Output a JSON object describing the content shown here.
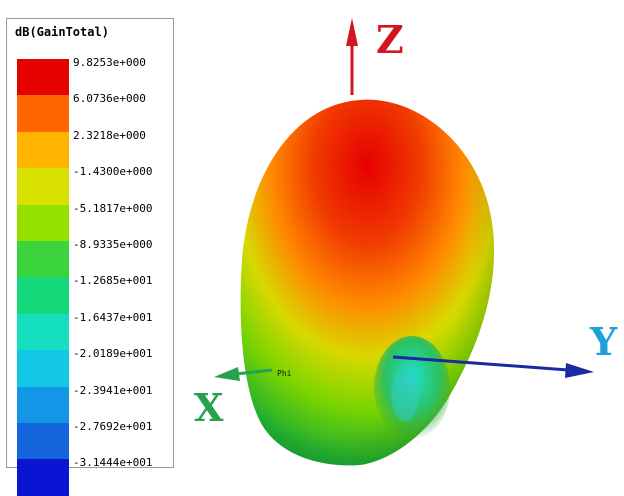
{
  "legend": {
    "title": "dB(GainTotal)",
    "ticks": [
      "9.8253e+000",
      "6.0736e+000",
      "2.3218e+000",
      "-1.4300e+000",
      "-5.1817e+000",
      "-8.9335e+000",
      "-1.2685e+001",
      "-1.6437e+001",
      "-2.0189e+001",
      "-2.3941e+001",
      "-2.7692e+001",
      "-3.1444e+001"
    ],
    "colors": [
      "#e60000",
      "#ff6600",
      "#ffb400",
      "#d8e000",
      "#96e000",
      "#3cd43c",
      "#14d87a",
      "#14e0c0",
      "#12c8e6",
      "#1496e6",
      "#1464dc",
      "#0a14d2"
    ]
  },
  "axes": {
    "z_label": "Z",
    "y_label": "Y",
    "x_label": "X",
    "phi_label": "Phi",
    "z_color": "#d4141e",
    "y_color": "#1ea0dc",
    "x_color": "#28a050"
  }
}
